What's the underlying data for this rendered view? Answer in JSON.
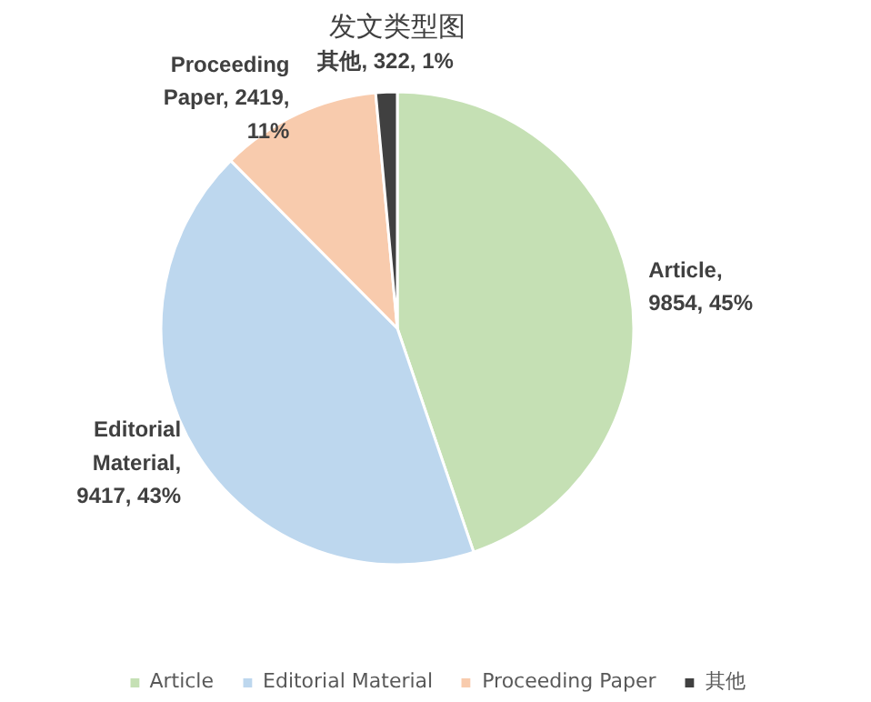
{
  "chart_data": {
    "type": "pie",
    "title": "发文类型图",
    "categories": [
      "Article",
      "Editorial Material",
      "Proceeding Paper",
      "其他"
    ],
    "values": [
      9854,
      9417,
      2419,
      322
    ],
    "colors": [
      "#c5e0b4",
      "#bdd7ee",
      "#f8cbad",
      "#404040"
    ],
    "value_labels": [
      "Article, 9854, 45%",
      "Editorial Material, 9417, 43%",
      "Proceeding Paper, 2419, 11%",
      "其他, 322, 1%"
    ],
    "legend": "bottom"
  }
}
